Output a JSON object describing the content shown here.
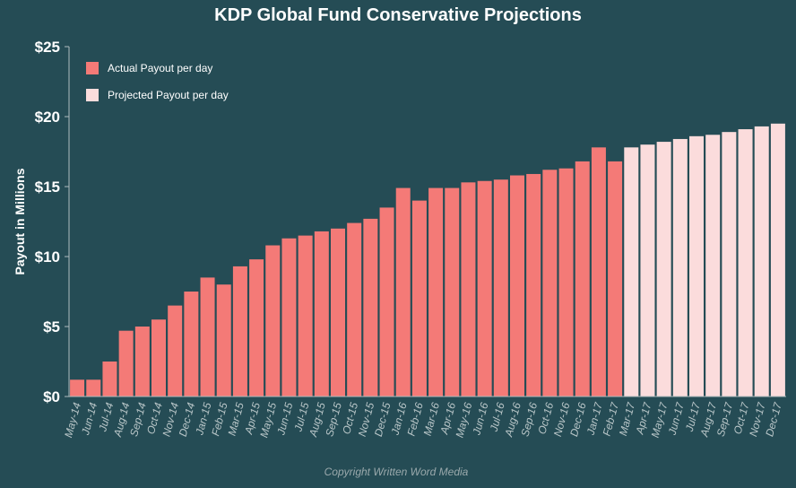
{
  "chart_data": {
    "type": "bar",
    "title": "KDP Global Fund Conservative Projections",
    "xlabel": "",
    "ylabel": "Payout in Millions",
    "ylim": [
      0,
      25
    ],
    "yticks": [
      "$0",
      "$5",
      "$10",
      "$15",
      "$20",
      "$25"
    ],
    "legend_position": "top-left",
    "categories": [
      "May-14",
      "Jun-14",
      "Jul-14",
      "Aug-14",
      "Sep-14",
      "Oct-14",
      "Nov-14",
      "Dec-14",
      "Jan-15",
      "Feb-15",
      "Mar-15",
      "Apr-15",
      "May-15",
      "Jun-15",
      "Jul-15",
      "Aug-15",
      "Sep-15",
      "Oct-15",
      "Nov-15",
      "Dec-15",
      "Jan-16",
      "Feb-16",
      "Mar-16",
      "Apr-16",
      "May-16",
      "Jun-16",
      "Jul-16",
      "Aug-16",
      "Sep-16",
      "Oct-16",
      "Nov-16",
      "Dec-16",
      "Jan-17",
      "Feb-17",
      "Mar-17",
      "Apr-17",
      "May-17",
      "Jun-17",
      "Jul-17",
      "Aug-17",
      "Sep-17",
      "Oct-17",
      "Nov-17",
      "Dec-17"
    ],
    "series": [
      {
        "name": "Actual Payout per day",
        "color": "#f47a77",
        "values": [
          1.2,
          1.2,
          2.5,
          4.7,
          5.0,
          5.5,
          6.5,
          7.5,
          8.5,
          8.0,
          9.3,
          9.8,
          10.8,
          11.3,
          11.5,
          11.8,
          12.0,
          12.4,
          12.7,
          13.5,
          14.9,
          14.0,
          14.9,
          14.9,
          15.3,
          15.4,
          15.5,
          15.8,
          15.9,
          16.2,
          16.3,
          16.8,
          17.8,
          16.8,
          null,
          null,
          null,
          null,
          null,
          null,
          null,
          null,
          null,
          null
        ]
      },
      {
        "name": "Projected Payout per day",
        "color": "#fbdcdc",
        "values": [
          null,
          null,
          null,
          null,
          null,
          null,
          null,
          null,
          null,
          null,
          null,
          null,
          null,
          null,
          null,
          null,
          null,
          null,
          null,
          null,
          null,
          null,
          null,
          null,
          null,
          null,
          null,
          null,
          null,
          null,
          null,
          null,
          null,
          null,
          17.8,
          18.0,
          18.2,
          18.4,
          18.6,
          18.7,
          18.9,
          19.1,
          19.3,
          19.5
        ]
      }
    ]
  },
  "footer": {
    "copyright": "Copyright Written Word Media"
  },
  "colors": {
    "background": "#254c55",
    "axis": "#b0bcbe",
    "text": "#ffffff"
  }
}
